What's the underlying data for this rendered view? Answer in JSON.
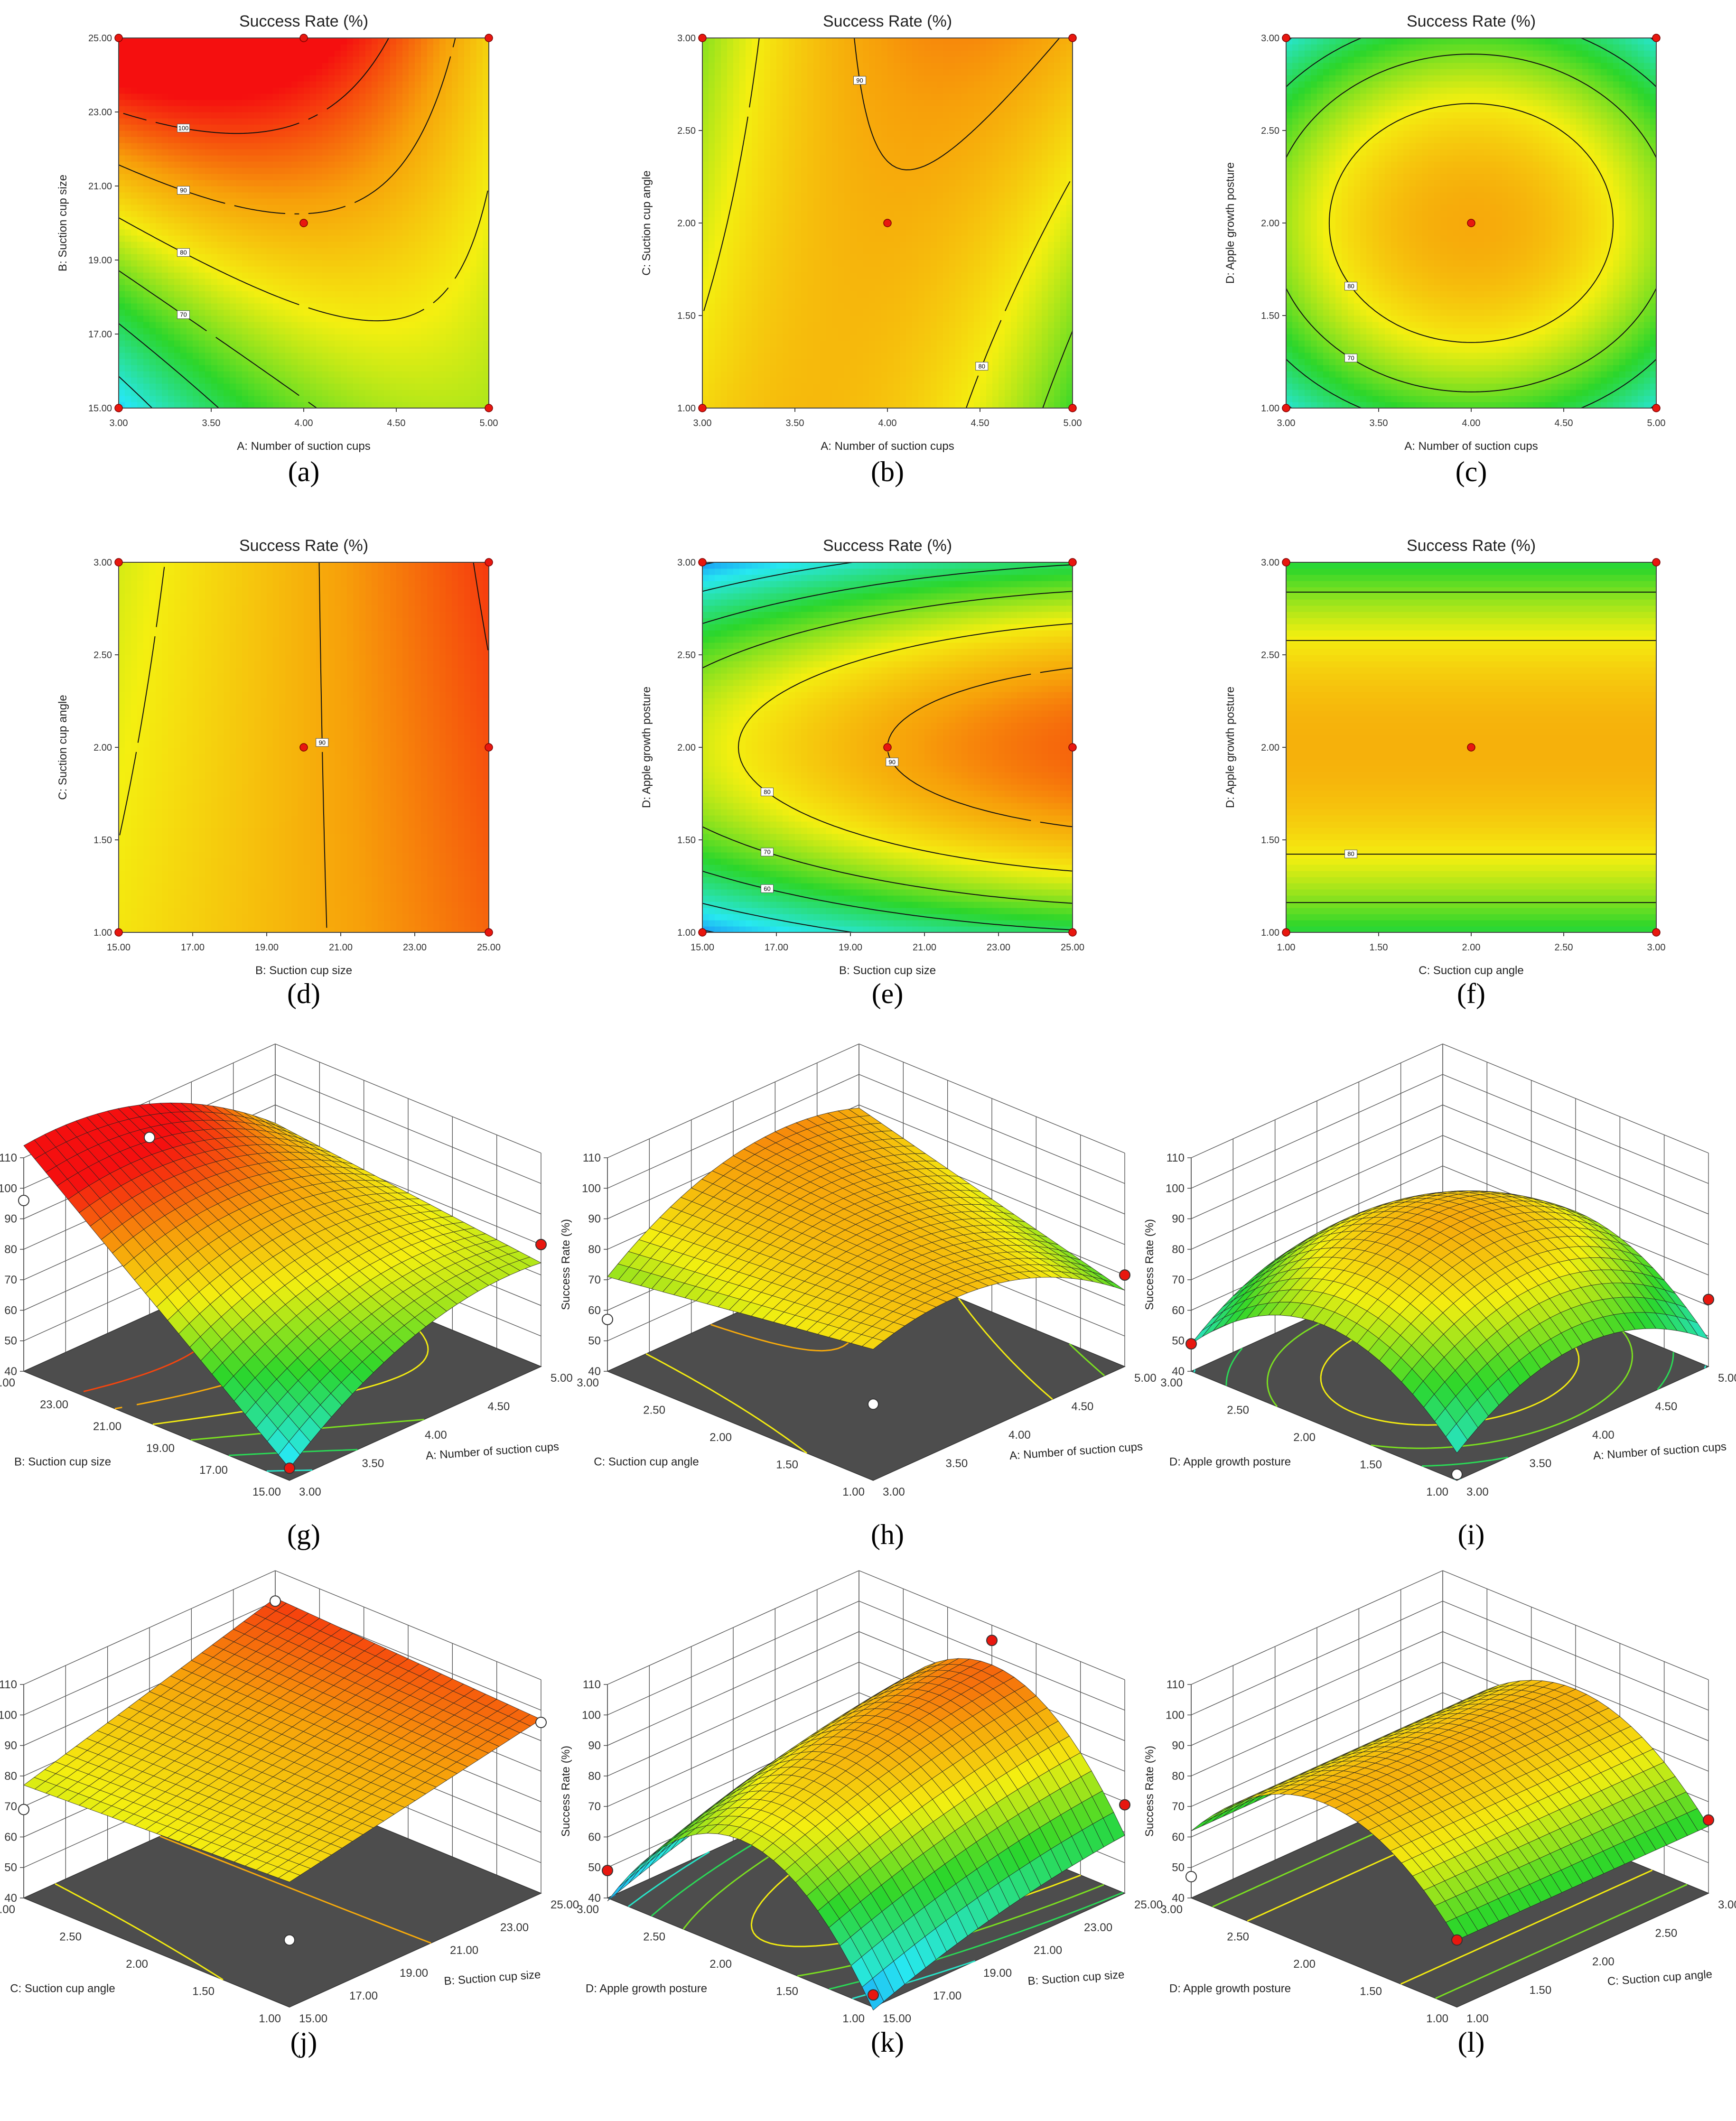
{
  "figure": {
    "response_label": "Success Rate (%)"
  },
  "colors": {
    "low": "#0a3cff",
    "cyan": "#27e8f0",
    "green": "#2bd62b",
    "yellow": "#f4ef10",
    "orange": "#f7a00a",
    "red": "#f50f0f",
    "floor": "#4d4d4d",
    "point": "#e8170f"
  },
  "chart_data": [
    {
      "id": "a",
      "letter": "(a)",
      "type": "heatmap",
      "title": "Success Rate (%)",
      "xlabel": "A: Number of suction cups",
      "ylabel": "B: Suction cup size",
      "x_ticks": [
        "3.00",
        "3.50",
        "4.00",
        "4.50",
        "5.00"
      ],
      "y_ticks": [
        "15.00",
        "17.00",
        "19.00",
        "21.00",
        "23.00",
        "25.00"
      ],
      "xlim": [
        3,
        5
      ],
      "ylim": [
        15,
        25
      ],
      "model": {
        "c0": 89,
        "c1": 0,
        "c2": 20,
        "c11": -10,
        "c22": 0,
        "c12": -15
      },
      "contour_labels": [
        "100",
        "90",
        "80",
        "70",
        "60",
        "50",
        "80"
      ],
      "design_points": [
        [
          3,
          15
        ],
        [
          3,
          25
        ],
        [
          5,
          15
        ],
        [
          5,
          25
        ],
        [
          4,
          20
        ],
        [
          4,
          25
        ]
      ]
    },
    {
      "id": "b",
      "letter": "(b)",
      "type": "heatmap",
      "title": "Success Rate (%)",
      "xlabel": "A: Number of suction cups",
      "ylabel": "C: Suction cup angle",
      "x_ticks": [
        "3.00",
        "3.50",
        "4.00",
        "4.50",
        "5.00"
      ],
      "y_ticks": [
        "1.00",
        "1.50",
        "2.00",
        "2.50",
        "3.00"
      ],
      "xlim": [
        3,
        5
      ],
      "ylim": [
        1,
        3
      ],
      "model": {
        "c0": 89,
        "c1": 0,
        "c2": 3,
        "c11": -12,
        "c22": 0,
        "c12": 9
      },
      "contour_labels": [
        "70",
        "80",
        "90",
        "90",
        "80",
        "70"
      ],
      "design_points": [
        [
          3,
          1
        ],
        [
          3,
          3
        ],
        [
          5,
          1
        ],
        [
          5,
          3
        ],
        [
          4,
          2
        ]
      ]
    },
    {
      "id": "c",
      "letter": "(c)",
      "type": "heatmap",
      "title": "Success Rate (%)",
      "xlabel": "A: Number of suction cups",
      "ylabel": "D: Apple growth posture",
      "x_ticks": [
        "3.00",
        "3.50",
        "4.00",
        "4.50",
        "5.00"
      ],
      "y_ticks": [
        "1.00",
        "1.50",
        "2.00",
        "2.50",
        "3.00"
      ],
      "xlim": [
        3,
        5
      ],
      "ylim": [
        1,
        3
      ],
      "model": {
        "c0": 90,
        "c1": 0,
        "c2": 0,
        "c11": -17,
        "c22": -24,
        "c12": 0
      },
      "contour_labels": [
        "40",
        "20",
        "80",
        "90",
        "30",
        "60",
        "70",
        "30"
      ],
      "design_points": [
        [
          3,
          1
        ],
        [
          3,
          3
        ],
        [
          5,
          1
        ],
        [
          5,
          3
        ],
        [
          4,
          2
        ]
      ]
    },
    {
      "id": "d",
      "letter": "(d)",
      "type": "heatmap",
      "title": "Success Rate (%)",
      "xlabel": "B: Suction cup size",
      "ylabel": "C: Suction cup angle",
      "x_ticks": [
        "15.00",
        "17.00",
        "19.00",
        "21.00",
        "23.00",
        "25.00"
      ],
      "y_ticks": [
        "1.00",
        "1.50",
        "2.00",
        "2.50",
        "3.00"
      ],
      "xlim": [
        15,
        25
      ],
      "ylim": [
        1,
        3
      ],
      "model": {
        "c0": 89,
        "c1": 10,
        "c2": 0,
        "c11": 0,
        "c22": 0,
        "c12": 2
      },
      "contour_labels": [
        "80",
        "90",
        "100"
      ],
      "design_points": [
        [
          15,
          1
        ],
        [
          15,
          3
        ],
        [
          25,
          1
        ],
        [
          25,
          3
        ],
        [
          20,
          2
        ],
        [
          25,
          2
        ]
      ]
    },
    {
      "id": "e",
      "letter": "(e)",
      "type": "heatmap",
      "title": "Success Rate (%)",
      "xlabel": "B: Suction cup size",
      "ylabel": "D: Apple growth posture",
      "x_ticks": [
        "15.00",
        "17.00",
        "19.00",
        "21.00",
        "23.00",
        "25.00"
      ],
      "y_ticks": [
        "1.00",
        "1.50",
        "2.00",
        "2.50",
        "3.00"
      ],
      "xlim": [
        15,
        25
      ],
      "ylim": [
        1,
        3
      ],
      "model": {
        "c0": 90,
        "c1": 10,
        "c2": 0,
        "c11": -3,
        "c22": -38,
        "c12": 0
      },
      "contour_labels": [
        "60",
        "70",
        "80",
        "90",
        "70",
        "60"
      ],
      "design_points": [
        [
          15,
          1
        ],
        [
          15,
          3
        ],
        [
          25,
          1
        ],
        [
          25,
          3
        ],
        [
          20,
          2
        ],
        [
          25,
          2
        ]
      ]
    },
    {
      "id": "f",
      "letter": "(f)",
      "type": "heatmap",
      "title": "Success Rate (%)",
      "xlabel": "C: Suction cup angle",
      "ylabel": "D: Apple growth posture",
      "x_ticks": [
        "1.00",
        "1.50",
        "2.00",
        "2.50",
        "3.00"
      ],
      "y_ticks": [
        "1.00",
        "1.50",
        "2.00",
        "2.50",
        "3.00"
      ],
      "xlim": [
        1,
        3
      ],
      "ylim": [
        1,
        3
      ],
      "model": {
        "c0": 89,
        "c1": 0,
        "c2": 0,
        "c11": 0,
        "c22": -27,
        "c12": 0
      },
      "contour_labels": [
        "60",
        "70",
        "80",
        "90",
        "80",
        "70"
      ],
      "design_points": [
        [
          1,
          1
        ],
        [
          1,
          3
        ],
        [
          3,
          1
        ],
        [
          3,
          3
        ],
        [
          2,
          2
        ]
      ]
    },
    {
      "id": "g",
      "letter": "(g)",
      "type": "surface",
      "zlabel": "Success Rate (%)",
      "z_ticks": [
        "40",
        "50",
        "60",
        "70",
        "80",
        "90",
        "100",
        "110"
      ],
      "zlim": [
        40,
        110
      ],
      "right_label": "A: Number of suction cups",
      "right_ticks": [
        "3.00",
        "3.50",
        "4.00",
        "4.50",
        "5.00"
      ],
      "right_range": [
        3,
        5
      ],
      "left_label": "B: Suction cup size",
      "left_ticks": [
        "15.00",
        "17.00",
        "19.00",
        "21.00",
        "23.00",
        "25.00"
      ],
      "left_range": [
        15,
        25
      ],
      "model": {
        "c0": 89,
        "c1": 0,
        "c2": 20,
        "c11": -10,
        "c22": 0,
        "c12": -15
      },
      "points": [
        [
          3,
          25,
          96
        ],
        [
          4,
          25,
          98
        ],
        [
          5,
          15,
          80
        ],
        [
          3,
          15,
          44
        ]
      ]
    },
    {
      "id": "h",
      "letter": "(h)",
      "type": "surface",
      "zlabel": "Success Rate (%)",
      "z_ticks": [
        "40",
        "50",
        "60",
        "70",
        "80",
        "90",
        "100",
        "110"
      ],
      "zlim": [
        40,
        110
      ],
      "right_label": "A: Number of suction cups",
      "right_ticks": [
        "3.00",
        "3.50",
        "4.00",
        "4.50",
        "5.00"
      ],
      "right_range": [
        3,
        5
      ],
      "left_label": "C: Suction cup angle",
      "left_ticks": [
        "1.00",
        "1.50",
        "2.00",
        "2.50",
        "3.00"
      ],
      "left_range": [
        1,
        3
      ],
      "model": {
        "c0": 89,
        "c1": 0,
        "c2": 3,
        "c11": -12,
        "c22": 0,
        "c12": 9
      },
      "points": [
        [
          3,
          3,
          57
        ],
        [
          3,
          1,
          65
        ],
        [
          5,
          1,
          70
        ]
      ]
    },
    {
      "id": "i",
      "letter": "(i)",
      "type": "surface",
      "zlabel": "Success Rate (%)",
      "z_ticks": [
        "40",
        "50",
        "60",
        "70",
        "80",
        "90",
        "100",
        "110"
      ],
      "zlim": [
        40,
        110
      ],
      "right_label": "A: Number of suction cups",
      "right_ticks": [
        "3.00",
        "3.50",
        "4.00",
        "4.50",
        "5.00"
      ],
      "right_range": [
        3,
        5
      ],
      "left_label": "D: Apple growth posture",
      "left_ticks": [
        "1.00",
        "1.50",
        "2.00",
        "2.50",
        "3.00"
      ],
      "left_range": [
        1,
        3
      ],
      "model": {
        "c0": 90,
        "c1": 0,
        "c2": 0,
        "c11": -17,
        "c22": -24,
        "c12": 0
      },
      "points": [
        [
          3,
          3,
          49
        ],
        [
          5,
          1,
          62
        ],
        [
          3,
          1,
          42
        ]
      ]
    },
    {
      "id": "j",
      "letter": "(j)",
      "type": "surface",
      "zlabel": "Success Rate (%)",
      "z_ticks": [
        "40",
        "50",
        "60",
        "70",
        "80",
        "90",
        "100",
        "110"
      ],
      "zlim": [
        40,
        110
      ],
      "right_label": "B: Suction cup size",
      "right_ticks": [
        "15.00",
        "17.00",
        "19.00",
        "21.00",
        "23.00",
        "25.00"
      ],
      "right_range": [
        15,
        25
      ],
      "left_label": "C: Suction cup angle",
      "left_ticks": [
        "1.00",
        "1.50",
        "2.00",
        "2.50",
        "3.00"
      ],
      "left_range": [
        1,
        3
      ],
      "model": {
        "c0": 89,
        "c1": 10,
        "c2": 0,
        "c11": 0,
        "c22": 0,
        "c12": 2
      },
      "points": [
        [
          15,
          3,
          69
        ],
        [
          25,
          3,
          100
        ],
        [
          25,
          1,
          96
        ],
        [
          15,
          1,
          62
        ]
      ]
    },
    {
      "id": "k",
      "letter": "(k)",
      "type": "surface",
      "zlabel": "Success Rate (%)",
      "z_ticks": [
        "40",
        "50",
        "60",
        "70",
        "80",
        "90",
        "100",
        "110"
      ],
      "zlim": [
        40,
        110
      ],
      "right_label": "B: Suction cup size",
      "right_ticks": [
        "15.00",
        "17.00",
        "19.00",
        "21.00",
        "23.00",
        "25.00"
      ],
      "right_range": [
        15,
        25
      ],
      "left_label": "D: Apple growth posture",
      "left_ticks": [
        "1.00",
        "1.50",
        "2.00",
        "2.50",
        "3.00"
      ],
      "left_range": [
        1,
        3
      ],
      "model": {
        "c0": 90,
        "c1": 10,
        "c2": 0,
        "c11": -3,
        "c22": -38,
        "c12": 0
      },
      "points": [
        [
          15,
          3,
          49
        ],
        [
          25,
          2,
          105
        ],
        [
          25,
          1,
          69
        ],
        [
          15,
          1,
          44
        ]
      ]
    },
    {
      "id": "l",
      "letter": "(l)",
      "type": "surface",
      "zlabel": "Success Rate (%)",
      "z_ticks": [
        "40",
        "50",
        "60",
        "70",
        "80",
        "90",
        "100",
        "110"
      ],
      "zlim": [
        40,
        110
      ],
      "right_label": "C: Suction cup angle",
      "right_ticks": [
        "1.00",
        "1.50",
        "2.00",
        "2.50",
        "3.00"
      ],
      "right_range": [
        1,
        3
      ],
      "left_label": "D: Apple growth posture",
      "left_ticks": [
        "1.00",
        "1.50",
        "2.00",
        "2.50",
        "3.00"
      ],
      "left_range": [
        1,
        3
      ],
      "model": {
        "c0": 89,
        "c1": 0,
        "c2": 0,
        "c11": 0,
        "c22": -27,
        "c12": 0
      },
      "points": [
        [
          1,
          3,
          47
        ],
        [
          3,
          1,
          64
        ],
        [
          1,
          1,
          62
        ]
      ]
    }
  ]
}
